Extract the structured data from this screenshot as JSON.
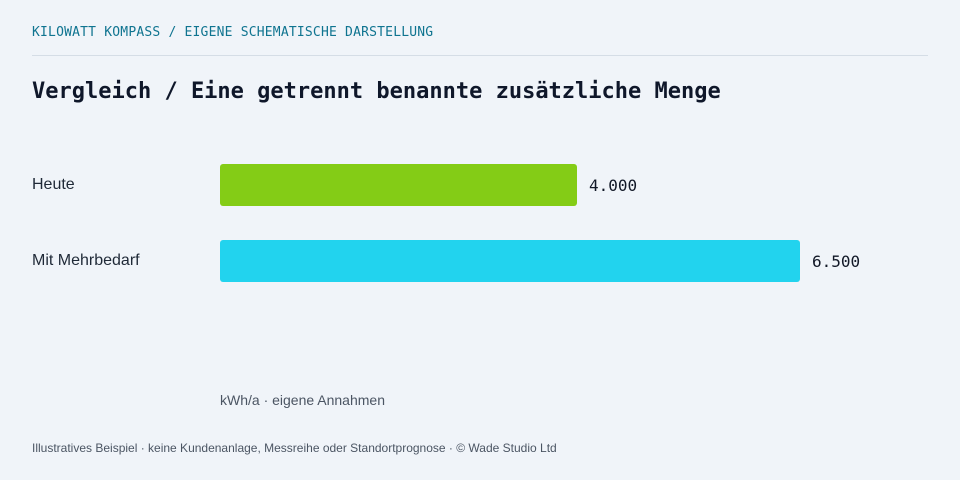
{
  "header": {
    "kicker": "KILOWATT KOMPASS / EIGENE SCHEMATISCHE DARSTELLUNG",
    "title": "Vergleich / Eine getrennt benannte zusätzliche Menge"
  },
  "chart_data": {
    "type": "bar",
    "orientation": "horizontal",
    "categories": [
      "Heute",
      "Mit Mehrbedarf"
    ],
    "values": [
      4000,
      6500
    ],
    "value_labels": [
      "4.000",
      "6.500"
    ],
    "colors": [
      "#84cc16",
      "#22d3ee"
    ],
    "unit_note": "kWh/a · eigene Annahmen",
    "xlim": [
      0,
      6500
    ],
    "grid": false,
    "legend": "none"
  },
  "footer": {
    "note": "Illustratives Beispiel · keine Kundenanlage, Messreihe oder Standortprognose · © Wade Studio Ltd"
  }
}
